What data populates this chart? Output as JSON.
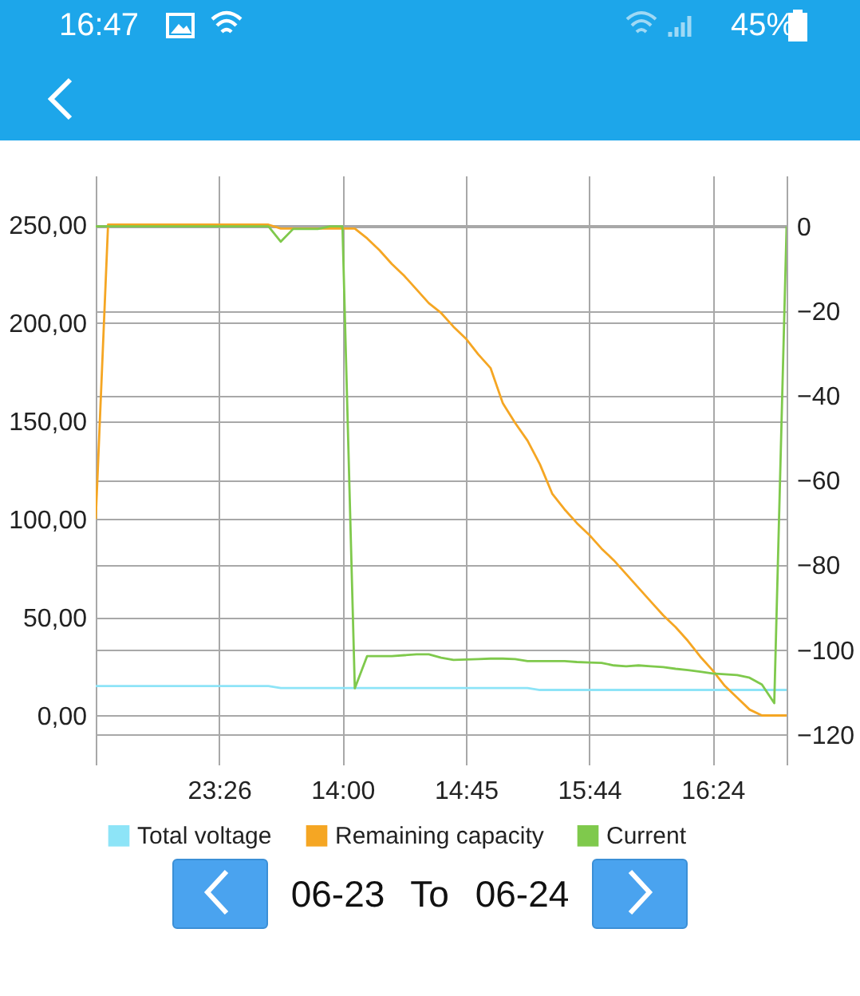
{
  "chart_data": {
    "type": "line",
    "categories": [
      null,
      null,
      null,
      null,
      null,
      null,
      null,
      null,
      null,
      null,
      "23:26",
      null,
      null,
      null,
      null,
      null,
      null,
      null,
      null,
      null,
      "14:00",
      null,
      null,
      null,
      null,
      null,
      null,
      null,
      null,
      null,
      "14:45",
      null,
      null,
      null,
      null,
      null,
      null,
      null,
      null,
      null,
      "15:44",
      null,
      null,
      null,
      null,
      null,
      null,
      null,
      null,
      null,
      "16:24",
      null,
      null,
      null,
      null,
      null,
      null
    ],
    "series": [
      {
        "name": "Total voltage",
        "color": "#8de4f7",
        "values": [
          15,
          15,
          15,
          15,
          15,
          15,
          15,
          15,
          15,
          15,
          15,
          15,
          15,
          15,
          15,
          14,
          14,
          14,
          14,
          14,
          14,
          14,
          14,
          14,
          14,
          14,
          14,
          14,
          14,
          14,
          14,
          14,
          14,
          14,
          14,
          14,
          13,
          13,
          13,
          13,
          13,
          13,
          13,
          13,
          13,
          13,
          13,
          13,
          13,
          13,
          13,
          13,
          13,
          13,
          13,
          13,
          13
        ]
      },
      {
        "name": "Remaining capacity",
        "color": "#f5a623",
        "values": [
          100,
          250,
          250,
          250,
          250,
          250,
          250,
          250,
          250,
          250,
          250,
          250,
          250,
          250,
          250,
          248,
          248,
          248,
          248,
          248,
          248,
          248,
          243,
          237,
          230,
          224,
          217,
          210,
          205,
          198,
          192,
          184,
          177,
          159,
          149,
          140,
          128,
          113,
          105,
          98,
          92,
          85,
          79,
          72,
          65,
          58,
          51,
          45,
          38,
          30,
          23,
          15,
          9,
          3,
          0,
          0,
          0
        ]
      },
      {
        "name": "Current",
        "color": "#7fc94c",
        "axis": "y2",
        "values": [
          0,
          0,
          0,
          0,
          0,
          0,
          0,
          0,
          0,
          0,
          0,
          0,
          0,
          0,
          0,
          -3.6,
          -0.6,
          -0.6,
          -0.6,
          0,
          0,
          -109,
          -101.4,
          -101.4,
          -101.4,
          -101.2,
          -101,
          -101,
          -101.8,
          -102.3,
          -102.2,
          -102.1,
          -102,
          -102,
          -102.1,
          -102.6,
          -102.6,
          -102.6,
          -102.6,
          -102.8,
          -102.9,
          -103,
          -103.6,
          -103.8,
          -103.6,
          -103.8,
          -104,
          -104.4,
          -104.7,
          -105.1,
          -105.5,
          -105.7,
          -105.9,
          -106.5,
          -108.1,
          -112.5,
          0
        ]
      }
    ],
    "ylim": [
      -25,
      275
    ],
    "yticks": [
      {
        "value": 0,
        "label": "0,00"
      },
      {
        "value": 50,
        "label": "50,00"
      },
      {
        "value": 100,
        "label": "100,00"
      },
      {
        "value": 150,
        "label": "150,00"
      },
      {
        "value": 200,
        "label": "200,00"
      },
      {
        "value": 250,
        "label": "250,00"
      }
    ],
    "y2lim": [
      -127,
      12
    ],
    "y2ticks": [
      -120,
      -100,
      -80,
      -60,
      -40,
      -20,
      0
    ],
    "grid": true,
    "legend": "bottom",
    "annotations": [
      "16:47",
      "45%",
      "06-23 To 06-24"
    ]
  }
}
